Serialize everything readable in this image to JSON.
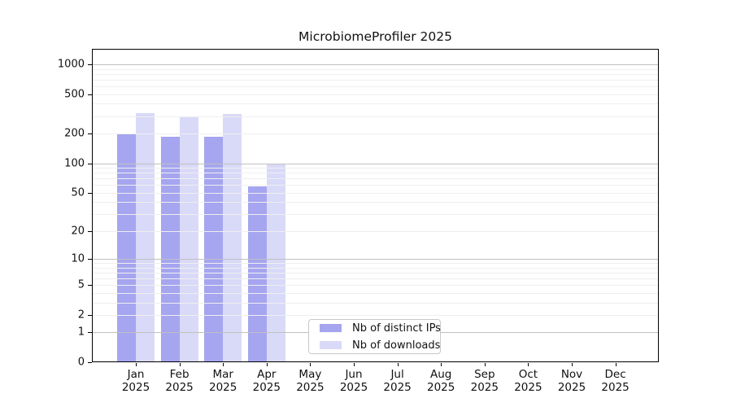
{
  "title": "MicrobiomeProfiler 2025",
  "chart_data": {
    "type": "bar",
    "title": "MicrobiomeProfiler 2025",
    "categories": [
      "Jan 2025",
      "Feb 2025",
      "Mar 2025",
      "Apr 2025",
      "May 2025",
      "Jun 2025",
      "Jul 2025",
      "Aug 2025",
      "Sep 2025",
      "Oct 2025",
      "Nov 2025",
      "Dec 2025"
    ],
    "series": [
      {
        "name": "Nb of distinct IPs",
        "color": "#a5a5f0",
        "values": [
          195,
          184,
          184,
          58,
          0,
          0,
          0,
          0,
          0,
          0,
          0,
          0
        ]
      },
      {
        "name": "Nb of downloads",
        "color": "#d9d9f8",
        "values": [
          322,
          291,
          317,
          97,
          0,
          0,
          0,
          0,
          0,
          0,
          0,
          0
        ]
      }
    ],
    "xlabel": "",
    "ylabel": "",
    "y_scale": "log10(1+x)",
    "y_ticks": [
      1000,
      500,
      200,
      100,
      50,
      20,
      10,
      5,
      2,
      1,
      0
    ],
    "ylim": [
      0,
      1430
    ],
    "grid": true,
    "grid_minor_color": "#efefef",
    "grid_major_color": "#c0c0c0",
    "legend_position": "lower center inside plot"
  }
}
